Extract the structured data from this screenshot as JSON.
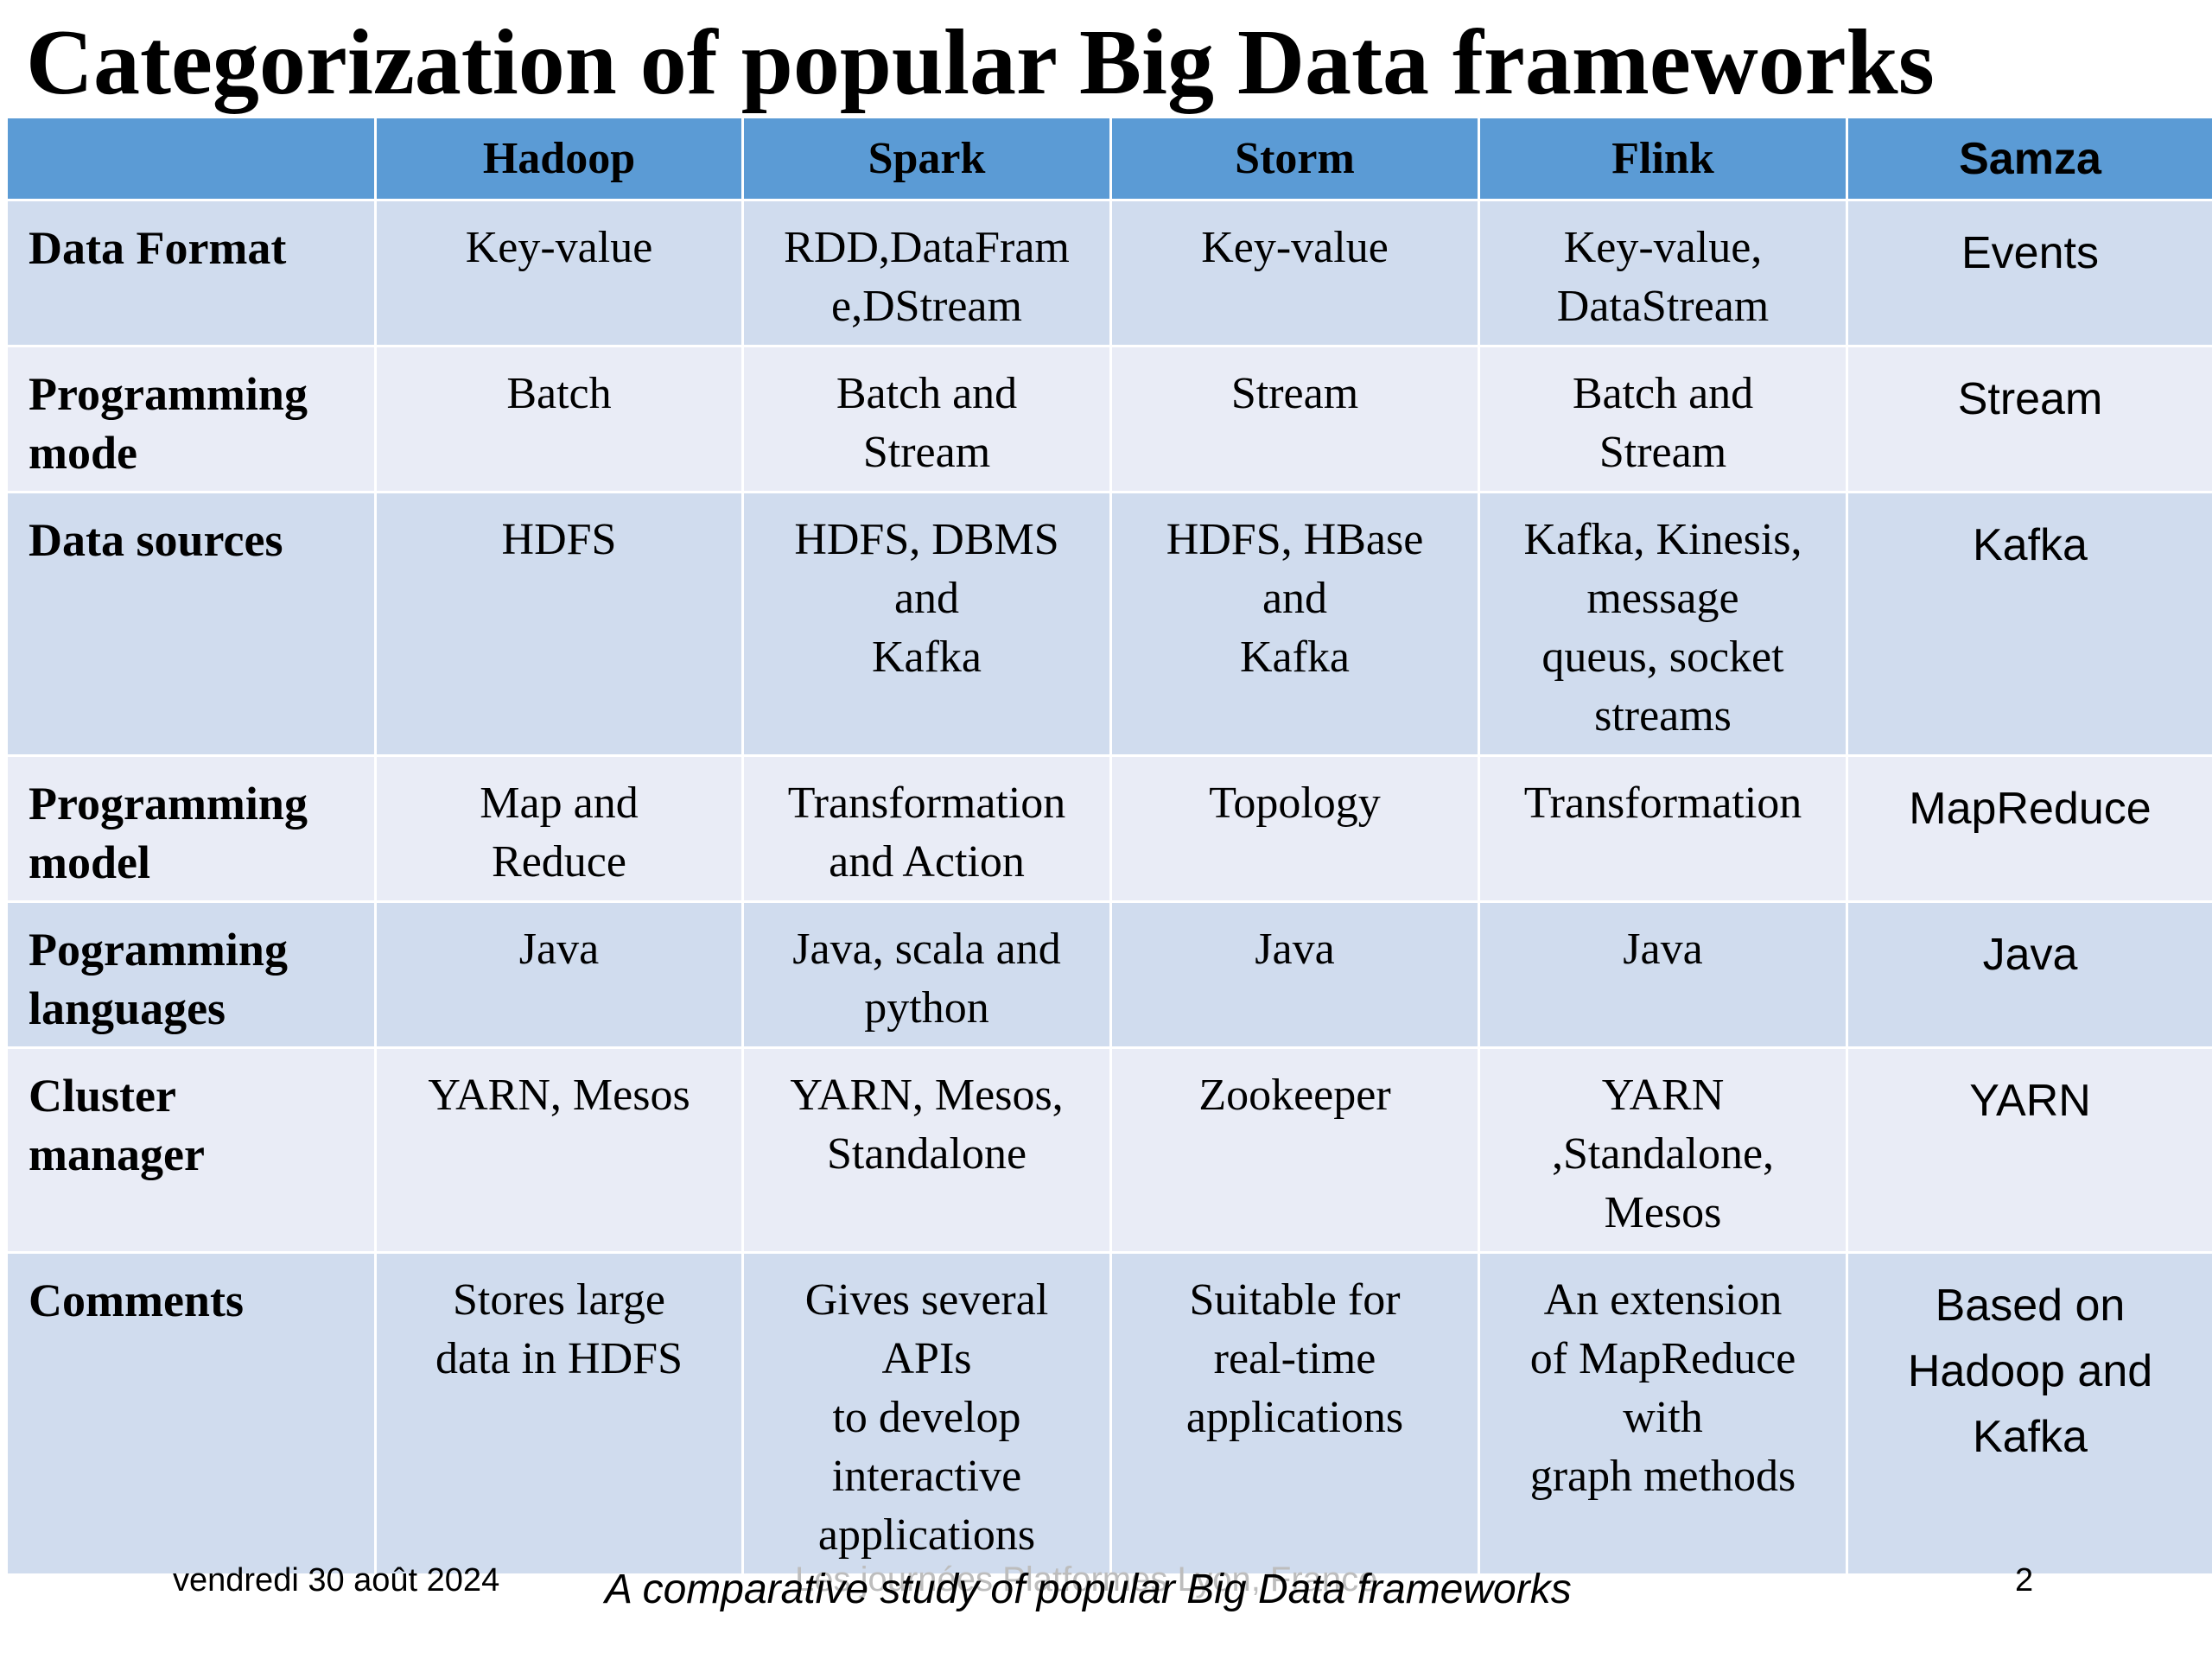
{
  "title": "Categorization of popular Big Data frameworks",
  "table": {
    "headers": [
      "",
      "Hadoop",
      "Spark",
      "Storm",
      "Flink",
      "Samza"
    ],
    "rows": [
      {
        "label": [
          "Data Format"
        ],
        "cells": [
          [
            "Key-value"
          ],
          [
            "RDD,DataFram",
            "e,DStream"
          ],
          [
            "Key-value"
          ],
          [
            "Key-value,",
            "DataStream"
          ],
          [
            "Events"
          ]
        ]
      },
      {
        "label": [
          "Programming",
          "mode"
        ],
        "cells": [
          [
            "Batch"
          ],
          [
            "Batch and",
            "Stream"
          ],
          [
            "Stream"
          ],
          [
            "Batch and",
            "Stream"
          ],
          [
            "Stream"
          ]
        ]
      },
      {
        "label": [
          "Data sources"
        ],
        "cells": [
          [
            "HDFS"
          ],
          [
            "HDFS, DBMS",
            "and",
            "Kafka"
          ],
          [
            "HDFS, HBase",
            "and",
            "Kafka"
          ],
          [
            "Kafka, Kinesis,",
            "message",
            "queus, socket",
            "streams"
          ],
          [
            "Kafka"
          ]
        ]
      },
      {
        "label": [
          "Programming",
          "model"
        ],
        "cells": [
          [
            "Map and",
            "Reduce"
          ],
          [
            "Transformation",
            "and Action"
          ],
          [
            "Topology"
          ],
          [
            "Transformation"
          ],
          [
            "MapReduce"
          ]
        ]
      },
      {
        "label": [
          "Pogramming",
          "languages"
        ],
        "cells": [
          [
            "Java"
          ],
          [
            "Java, scala and",
            "python"
          ],
          [
            "Java"
          ],
          [
            "Java"
          ],
          [
            "Java"
          ]
        ]
      },
      {
        "label": [
          "Cluster",
          "manager"
        ],
        "cells": [
          [
            "YARN, Mesos"
          ],
          [
            "YARN, Mesos,",
            "Standalone"
          ],
          [
            "Zookeeper"
          ],
          [
            "YARN",
            ",Standalone,",
            "Mesos"
          ],
          [
            "YARN"
          ]
        ]
      },
      {
        "label": [
          "Comments"
        ],
        "cells": [
          [
            "Stores large",
            "data in HDFS"
          ],
          [
            "Gives several",
            "APIs",
            "to develop",
            "interactive",
            "applications"
          ],
          [
            "Suitable for",
            "real-time",
            "applications"
          ],
          [
            "An extension",
            "of MapReduce",
            "with",
            "graph methods"
          ],
          [
            "Based on",
            "Hadoop and",
            "Kafka"
          ]
        ]
      }
    ]
  },
  "footer": {
    "date": "vendredi 30 août 2024",
    "ghost_text": "Les journées Platformes Lyon, France",
    "caption": "A comparative study of popular Big Data frameworks",
    "page_number": "2"
  },
  "colors": {
    "header_bg": "#5b9bd5",
    "row_dark": "#d0dcee",
    "row_light": "#e9ecf6"
  }
}
